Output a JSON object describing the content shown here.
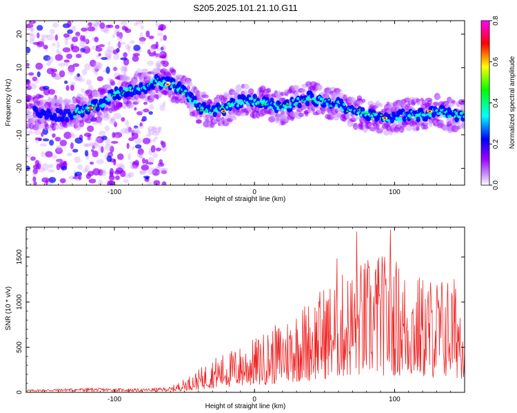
{
  "title": "S205.2025.101.21.10.G11",
  "chart_data": [
    {
      "type": "heatmap",
      "xlabel": "Height of straight line (km)",
      "ylabel": "Frequency (Hz)",
      "xlim": [
        -163,
        150
      ],
      "ylim": [
        -25,
        24
      ],
      "x_ticks": [
        -100,
        0,
        100
      ],
      "x_tick_labels": [
        "-100",
        "0",
        "100"
      ],
      "y_ticks": [
        -20,
        -10,
        0,
        10,
        20
      ],
      "y_tick_labels": [
        "-20",
        "-10",
        "0",
        "10",
        "20"
      ],
      "colorbar": {
        "label": "Normalized spectral amplitude",
        "range": [
          0,
          0.8
        ],
        "ticks": [
          0,
          0.2,
          0.4,
          0.6,
          0.8
        ],
        "tick_labels": [
          "0.0",
          "0.2",
          "0.4",
          "0.6",
          "0.8"
        ]
      },
      "ridge": {
        "x": [
          -160,
          -150,
          -140,
          -130,
          -120,
          -110,
          -100,
          -90,
          -80,
          -70,
          -60,
          -50,
          -40,
          -30,
          -20,
          -10,
          0,
          10,
          20,
          30,
          40,
          50,
          60,
          70,
          80,
          90,
          100,
          110,
          120,
          130,
          140,
          150
        ],
        "y": [
          -3,
          -4,
          -4,
          -4,
          -2,
          -1,
          2,
          3,
          4,
          6,
          5,
          3,
          -2,
          -3,
          -2,
          0,
          0,
          -1,
          -2,
          0,
          1,
          0,
          -1,
          -3,
          -4,
          -5,
          -5,
          -4,
          -4,
          -3,
          -4,
          -4
        ]
      },
      "colors": [
        "#ffffff",
        "#cc99ff",
        "#9900ff",
        "#0000ff",
        "#00ffff",
        "#00ff00",
        "#ffff00",
        "#ff0000",
        "#ff00ff"
      ]
    },
    {
      "type": "line",
      "xlabel": "Height of straight line (km)",
      "ylabel": "SNR (10 * v/v)",
      "xlim": [
        -163,
        150
      ],
      "ylim": [
        0,
        1830
      ],
      "x_ticks": [
        -100,
        0,
        100
      ],
      "x_tick_labels": [
        "-100",
        "0",
        "100"
      ],
      "y_ticks": [
        0,
        500,
        1000,
        1500
      ],
      "y_tick_labels": [
        "0",
        "500",
        "1000",
        "1500"
      ],
      "series": [
        {
          "color": "#ee2222",
          "envelope_x": [
            -163,
            -120,
            -80,
            -60,
            -50,
            -40,
            -30,
            -20,
            -10,
            0,
            10,
            20,
            30,
            40,
            50,
            60,
            70,
            80,
            90,
            100,
            110,
            120,
            130,
            140,
            150
          ],
          "envelope_y": [
            30,
            50,
            40,
            60,
            150,
            250,
            380,
            450,
            520,
            600,
            700,
            800,
            950,
            1050,
            1200,
            1300,
            1400,
            1500,
            1550,
            1500,
            1350,
            1300,
            1300,
            1300,
            1250
          ],
          "peaks": [
            {
              "x": 73,
              "y": 1780
            },
            {
              "x": 97,
              "y": 1800
            },
            {
              "x": 88,
              "y": 1460
            },
            {
              "x": 59,
              "y": 1480
            }
          ]
        }
      ]
    }
  ]
}
